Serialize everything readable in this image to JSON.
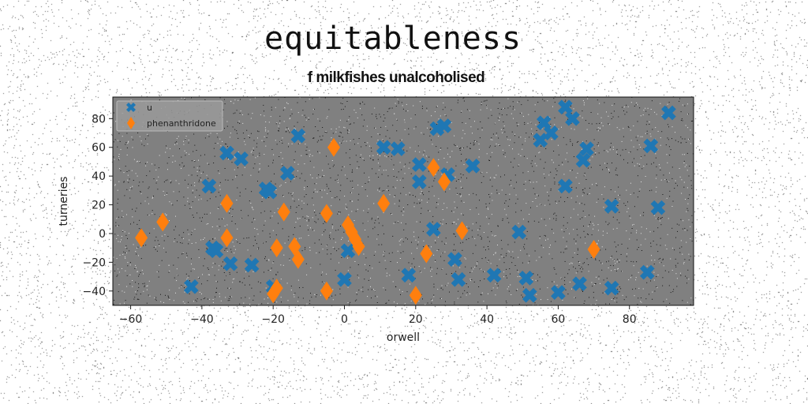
{
  "header": {
    "title": "equitableness",
    "subtitle": "f milkfishes unalcoholised"
  },
  "colors": {
    "page_background": "#ffffff",
    "plot_background": "#808080",
    "series_u": "#1f77b4",
    "series_phenanthridone": "#ff7f0e"
  },
  "chart_data": {
    "type": "scatter",
    "title": "f milkfishes unalcoholised",
    "xlabel": "orwell",
    "ylabel": "turneries",
    "xlim": [
      -65,
      98
    ],
    "ylim": [
      -50,
      95
    ],
    "xticks": [
      -60,
      -40,
      -20,
      0,
      20,
      40,
      60,
      80
    ],
    "yticks": [
      -40,
      -20,
      0,
      20,
      40,
      60,
      80
    ],
    "grid": false,
    "legend": "top-left",
    "series": [
      {
        "name": "u",
        "marker": "x",
        "color": "#1f77b4",
        "points": [
          [
            -43,
            -37
          ],
          [
            -38,
            33
          ],
          [
            -37,
            -10
          ],
          [
            -36,
            -12
          ],
          [
            -32,
            -21
          ],
          [
            -33,
            56
          ],
          [
            -29,
            52
          ],
          [
            -26,
            -22
          ],
          [
            -22,
            31
          ],
          [
            -21,
            29
          ],
          [
            -16,
            42
          ],
          [
            -13,
            68
          ],
          [
            -20,
            -37
          ],
          [
            0,
            -32
          ],
          [
            1,
            -12
          ],
          [
            11,
            60
          ],
          [
            15,
            59
          ],
          [
            18,
            -29
          ],
          [
            21,
            48
          ],
          [
            21,
            36
          ],
          [
            25,
            3
          ],
          [
            26,
            73
          ],
          [
            28,
            75
          ],
          [
            29,
            41
          ],
          [
            31,
            -18
          ],
          [
            32,
            -32
          ],
          [
            36,
            47
          ],
          [
            42,
            -29
          ],
          [
            49,
            1
          ],
          [
            51,
            -31
          ],
          [
            52,
            -43
          ],
          [
            55,
            65
          ],
          [
            56,
            77
          ],
          [
            58,
            70
          ],
          [
            60,
            -41
          ],
          [
            62,
            88
          ],
          [
            64,
            80
          ],
          [
            62,
            33
          ],
          [
            66,
            -35
          ],
          [
            67,
            51
          ],
          [
            68,
            59
          ],
          [
            75,
            19
          ],
          [
            75,
            -38
          ],
          [
            85,
            -27
          ],
          [
            86,
            61
          ],
          [
            88,
            18
          ],
          [
            91,
            84
          ]
        ]
      },
      {
        "name": "phenanthridone",
        "marker": "d",
        "color": "#ff7f0e",
        "points": [
          [
            -57,
            -3
          ],
          [
            -51,
            8
          ],
          [
            -33,
            21
          ],
          [
            -33,
            -3
          ],
          [
            -19,
            -10
          ],
          [
            -17,
            15
          ],
          [
            -14,
            -9
          ],
          [
            -13,
            -18
          ],
          [
            -20,
            -42
          ],
          [
            -19,
            -38
          ],
          [
            -5,
            14
          ],
          [
            -5,
            -40
          ],
          [
            -3,
            60
          ],
          [
            1,
            6
          ],
          [
            2,
            1
          ],
          [
            3,
            -4
          ],
          [
            4,
            -9
          ],
          [
            11,
            21
          ],
          [
            20,
            -43
          ],
          [
            23,
            -14
          ],
          [
            25,
            46
          ],
          [
            28,
            36
          ],
          [
            33,
            2
          ],
          [
            70,
            -11
          ]
        ]
      }
    ]
  }
}
